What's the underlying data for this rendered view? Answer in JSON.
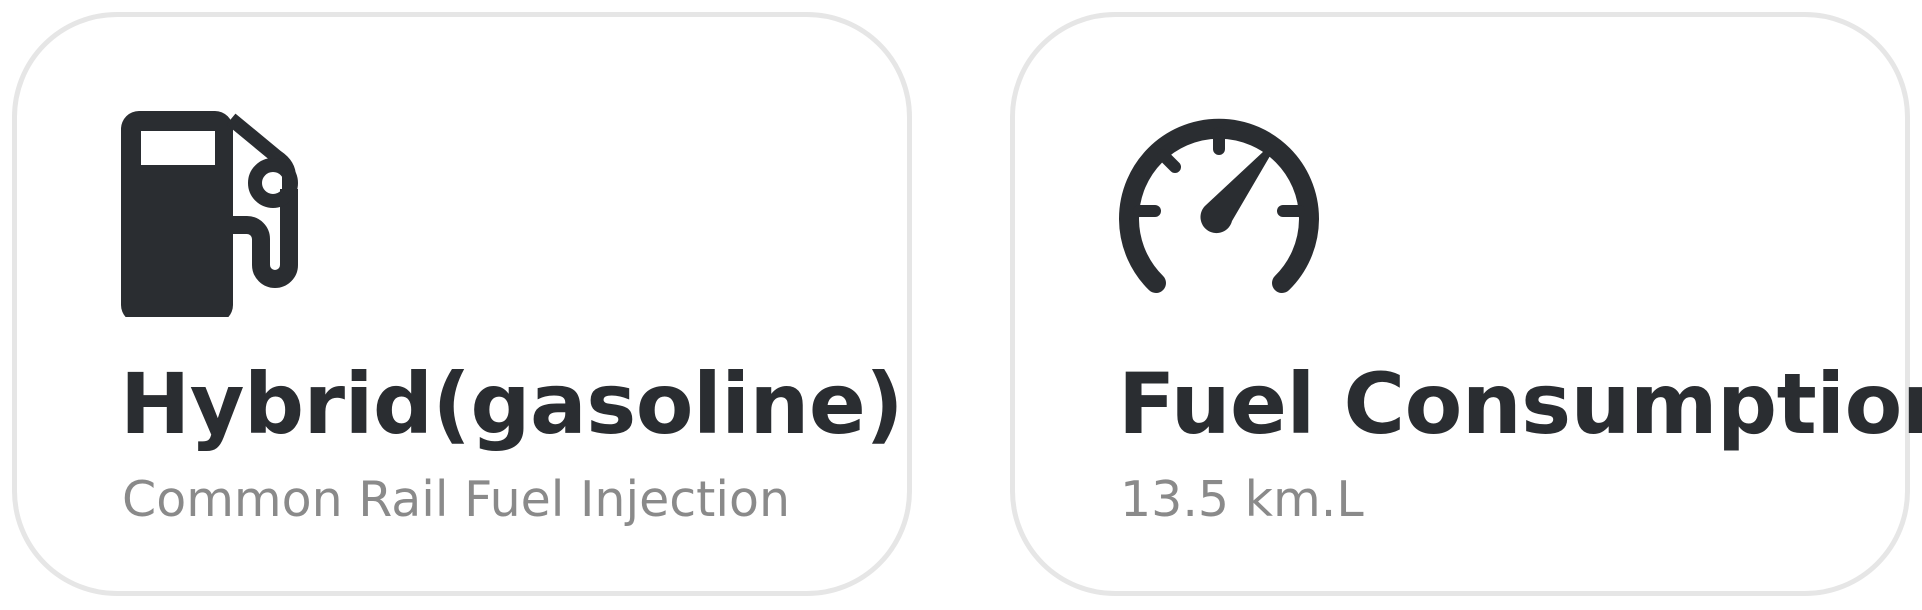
{
  "cards": [
    {
      "icon": "fuel-pump-icon",
      "title": "Hybrid(gasoline)",
      "subtitle": "Common Rail Fuel Injection"
    },
    {
      "icon": "speedometer-icon",
      "title": "Fuel Consumption",
      "subtitle": "13.5 km.L"
    }
  ],
  "colors": {
    "icon": "#2a2d31",
    "title": "#2a2d31",
    "subtitle": "#8a8a8a",
    "card_border": "#e6e6e6"
  }
}
